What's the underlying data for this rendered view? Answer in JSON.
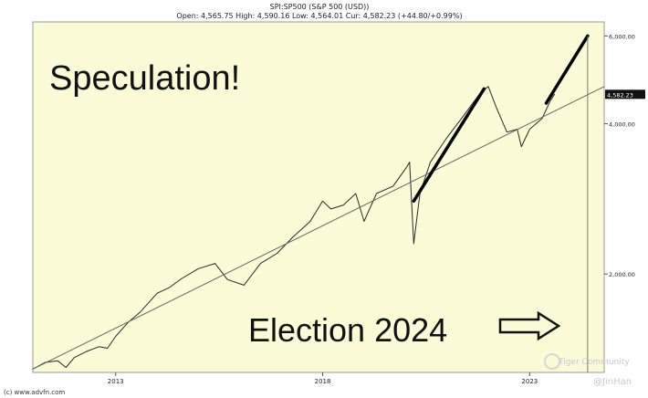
{
  "header": {
    "symbol": "SPI:SP500 (S&P 500 (USD))",
    "quote": "Open: 4,565.75 High: 4,590.16 Low: 4,564.01 Cur: 4,582.23 (+44.80/+0.99%)"
  },
  "footer": "(c) www.advfn.com",
  "watermark": {
    "brand": "Tiger Community",
    "user": "@JinHan"
  },
  "colors": {
    "plot_bg": "#fbfbd8",
    "price_line": "#2a2a2a",
    "trend_line": "#666666",
    "drawn_line": "#000000"
  },
  "chart_data": {
    "type": "line",
    "title": "SPI:SP500 (S&P 500 (USD))",
    "xlabel": "",
    "ylabel": "",
    "y_scale": "log",
    "xlim": [
      2011.0,
      2024.8
    ],
    "ylim": [
      1270,
      6400
    ],
    "x_ticks": [
      2013,
      2018,
      2023
    ],
    "x_tick_labels": [
      "2013",
      "2018",
      "2023"
    ],
    "y_ticks": [
      2000,
      4000,
      6000
    ],
    "y_tick_labels": [
      "2,000.00",
      "4,000.00",
      "6,000.00"
    ],
    "current_value": 4582.23,
    "current_label": "4,582.23",
    "grid": false,
    "series": [
      {
        "kind": "price",
        "x": [
          2011.0,
          2011.3,
          2011.6,
          2011.8,
          2012.0,
          2012.3,
          2012.6,
          2012.8,
          2013.0,
          2013.3,
          2013.6,
          2014.0,
          2014.3,
          2014.6,
          2015.0,
          2015.4,
          2015.7,
          2016.1,
          2016.5,
          2016.9,
          2017.3,
          2017.7,
          2018.0,
          2018.2,
          2018.5,
          2018.8,
          2019.0,
          2019.3,
          2019.7,
          2020.0,
          2020.1,
          2020.2,
          2020.35,
          2020.6,
          2021.0,
          2021.4,
          2021.8,
          2022.0,
          2022.2,
          2022.45,
          2022.7,
          2022.8,
          2023.0,
          2023.3,
          2023.5,
          2023.6
        ],
        "y": [
          1290,
          1330,
          1340,
          1300,
          1360,
          1400,
          1430,
          1420,
          1500,
          1600,
          1680,
          1830,
          1880,
          1960,
          2050,
          2100,
          1950,
          1900,
          2100,
          2200,
          2380,
          2550,
          2800,
          2700,
          2750,
          2900,
          2550,
          2900,
          3000,
          3250,
          3350,
          2300,
          2900,
          3350,
          3750,
          4150,
          4600,
          4750,
          4300,
          3850,
          3900,
          3600,
          3900,
          4100,
          4450,
          4582
        ]
      },
      {
        "kind": "trend",
        "x": [
          2011.0,
          2024.8
        ],
        "y": [
          1290,
          4750
        ]
      },
      {
        "kind": "drawn",
        "x": [
          2020.2,
          2021.9
        ],
        "y": [
          2800,
          4700
        ]
      },
      {
        "kind": "drawn",
        "x": [
          2023.4,
          2024.4
        ],
        "y": [
          4400,
          6000
        ]
      }
    ],
    "annotations": [
      {
        "id": "speculation",
        "text": "Speculation!"
      },
      {
        "id": "election",
        "text": "Election 2024"
      }
    ]
  }
}
